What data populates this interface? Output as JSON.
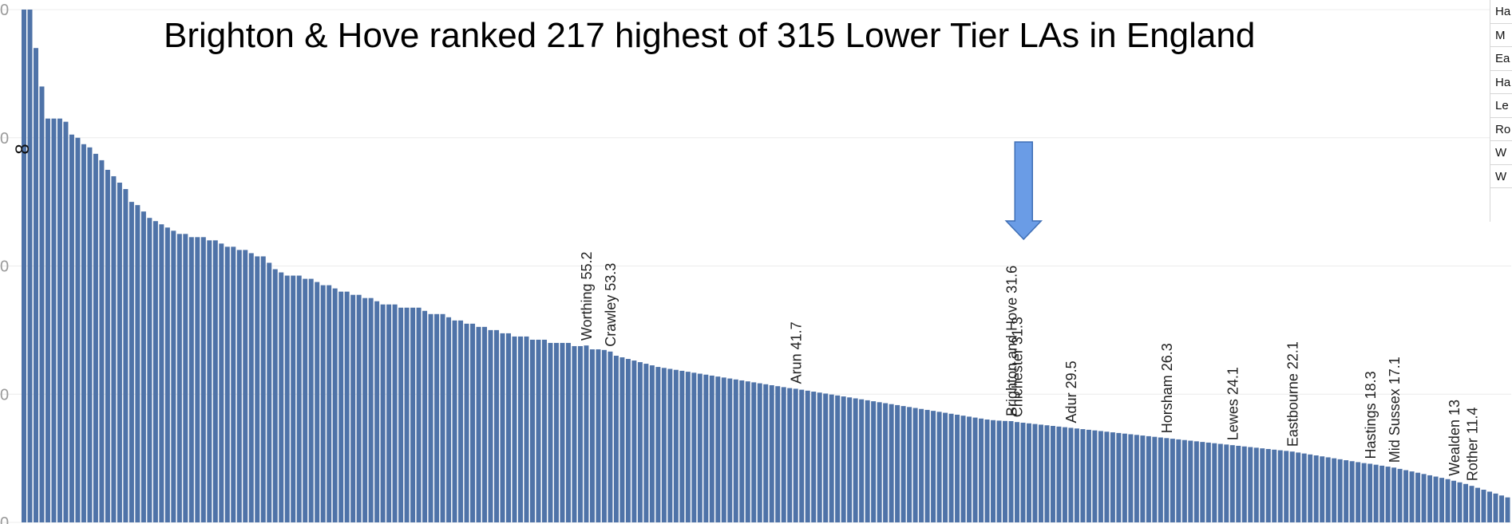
{
  "chart_data": {
    "type": "bar",
    "title": "Brighton & Hove ranked 217 highest of 315 Lower Tier LAs in England",
    "ylim": [
      0,
      160
    ],
    "y_tick_labels": [
      "0",
      "0",
      "0",
      "0",
      "0"
    ],
    "grid": "horizontal",
    "bar_color": "#4f73a8",
    "marker_color": "#6a9ce6",
    "top_bar_labels": [
      "8"
    ],
    "annotations": [
      {
        "label": "Worthing",
        "value": 55.2,
        "text": "Worthing 55.2"
      },
      {
        "label": "Crawley",
        "value": 53.3,
        "text": "Crawley 53.3"
      },
      {
        "label": "Arun",
        "value": 41.7,
        "text": "Arun 41.7"
      },
      {
        "label": "Brighton and Hove",
        "value": 31.6,
        "text": "Brighton and Hove 31.6",
        "highlighted": true
      },
      {
        "label": "Chichester",
        "value": 31.3,
        "text": "Chichester 31.3"
      },
      {
        "label": "Adur",
        "value": 29.5,
        "text": "Adur 29.5"
      },
      {
        "label": "Horsham",
        "value": 26.3,
        "text": "Horsham 26.3"
      },
      {
        "label": "Lewes",
        "value": 24.1,
        "text": "Lewes 24.1"
      },
      {
        "label": "Eastbourne",
        "value": 22.1,
        "text": "Eastbourne 22.1"
      },
      {
        "label": "Hastings",
        "value": 18.3,
        "text": "Hastings 18.3"
      },
      {
        "label": "Mid Sussex",
        "value": 17.1,
        "text": "Mid Sussex 17.1"
      },
      {
        "label": "Wealden",
        "value": 13,
        "text": "Wealden 13"
      },
      {
        "label": "Rother",
        "value": 11.4,
        "text": "Rother 11.4"
      }
    ],
    "values": [
      160,
      160,
      148,
      136,
      126,
      126,
      126,
      125,
      121,
      120,
      118,
      117,
      115,
      113,
      110,
      108,
      106,
      104,
      100,
      99,
      97,
      95,
      94,
      93,
      92,
      91,
      90,
      90,
      89,
      89,
      89,
      88,
      88,
      87,
      86,
      86,
      85,
      85,
      84,
      83,
      83,
      81,
      79,
      78,
      77,
      77,
      77,
      76,
      76,
      75,
      74,
      74,
      73,
      72,
      72,
      71,
      71,
      70,
      70,
      69,
      68,
      68,
      68,
      67,
      67,
      67,
      67,
      66,
      65,
      65,
      65,
      64,
      63,
      63,
      62,
      62,
      61,
      61,
      60,
      60,
      59,
      59,
      58,
      58,
      58,
      57,
      57,
      57,
      56,
      56,
      56,
      56,
      55,
      55,
      55.2,
      54,
      54,
      53.8,
      53.3,
      52,
      51.5,
      51,
      50.5,
      50,
      49.5,
      49,
      48.5,
      48.2,
      47.9,
      47.6,
      47.3,
      47.0,
      46.7,
      46.4,
      46.1,
      45.8,
      45.5,
      45.2,
      44.9,
      44.6,
      44.3,
      44.0,
      43.7,
      43.4,
      43.1,
      42.8,
      42.5,
      42.2,
      41.9,
      41.7,
      41.4,
      41.1,
      40.8,
      40.5,
      40.2,
      39.9,
      39.6,
      39.3,
      39.0,
      38.7,
      38.4,
      38.1,
      37.8,
      37.5,
      37.2,
      36.9,
      36.6,
      36.3,
      36.0,
      35.7,
      35.4,
      35.1,
      34.8,
      34.5,
      34.2,
      33.9,
      33.6,
      33.3,
      33.0,
      32.7,
      32.4,
      32.1,
      31.9,
      31.75,
      31.65,
      31.6,
      31.3,
      31.1,
      30.9,
      30.7,
      30.5,
      30.3,
      30.1,
      29.9,
      29.7,
      29.5,
      29.3,
      29.1,
      28.9,
      28.7,
      28.5,
      28.3,
      28.1,
      27.9,
      27.7,
      27.5,
      27.3,
      27.1,
      26.9,
      26.7,
      26.5,
      26.3,
      26.1,
      25.9,
      25.7,
      25.5,
      25.3,
      25.1,
      24.9,
      24.7,
      24.5,
      24.3,
      24.1,
      23.9,
      23.7,
      23.5,
      23.3,
      23.1,
      22.9,
      22.7,
      22.5,
      22.3,
      22.1,
      21.8,
      21.5,
      21.2,
      20.9,
      20.6,
      20.3,
      20.0,
      19.7,
      19.4,
      19.1,
      18.8,
      18.5,
      18.3,
      18.0,
      17.7,
      17.4,
      17.1,
      16.7,
      16.3,
      15.9,
      15.5,
      15.1,
      14.7,
      14.3,
      13.9,
      13.5,
      13.0,
      12.5,
      12.0,
      11.4,
      10.8,
      10.2,
      9.6,
      9.0,
      8.4,
      7.8
    ]
  },
  "legend_rows": [
    "Ha",
    "M",
    "Ea",
    "Ha",
    "Le",
    "Ro",
    "W",
    "W"
  ]
}
